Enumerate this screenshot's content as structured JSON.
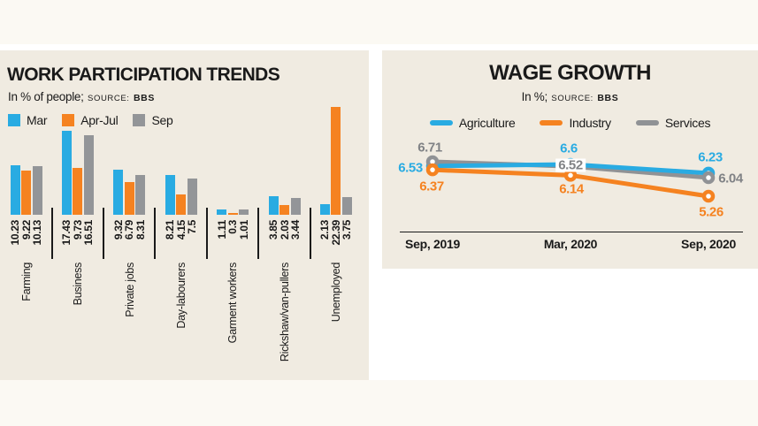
{
  "colors": {
    "blue": "#29abe2",
    "orange": "#f58220",
    "gray": "#939598",
    "gray_dark": "#808285",
    "panel_bg": "#f0ebe1",
    "page_bg": "#fbf9f3"
  },
  "left_chart": {
    "title": "WORK PARTICIPATION TRENDS",
    "subtitle": "In % of people;",
    "source_label": "SOURCE:",
    "source_value": "BBS"
  },
  "right_chart": {
    "title": "WAGE GROWTH",
    "subtitle": "In %;",
    "source_label": "SOURCE:",
    "source_value": "BBS"
  },
  "chart_data": [
    {
      "type": "bar",
      "title": "WORK PARTICIPATION TRENDS",
      "unit": "In % of people",
      "source": "BBS",
      "legend_position": "top-left",
      "categories": [
        "Farming",
        "Business",
        "Private jobs",
        "Day-labourers",
        "Garment workers",
        "Rickshaw/van-pullers",
        "Unemployed"
      ],
      "series": [
        {
          "name": "Mar",
          "color": "#29abe2",
          "values": [
            10.23,
            17.43,
            9.32,
            8.21,
            1.11,
            3.85,
            2.13
          ]
        },
        {
          "name": "Apr-Jul",
          "color": "#f58220",
          "values": [
            9.22,
            9.73,
            6.79,
            4.15,
            0.3,
            2.03,
            22.39
          ]
        },
        {
          "name": "Sep",
          "color": "#939598",
          "values": [
            10.13,
            16.51,
            8.31,
            7.5,
            1.01,
            3.44,
            3.75
          ]
        }
      ],
      "ylim": [
        0,
        23
      ],
      "grid": false
    },
    {
      "type": "line",
      "title": "WAGE GROWTH",
      "unit": "In %",
      "source": "BBS",
      "legend_position": "top",
      "x": [
        "Sep, 2019",
        "Mar, 2020",
        "Sep, 2020"
      ],
      "series": [
        {
          "name": "Agriculture",
          "color": "#29abe2",
          "label_color": "#29abe2",
          "values": [
            6.53,
            6.6,
            6.23
          ]
        },
        {
          "name": "Industry",
          "color": "#f58220",
          "label_color": "#f58220",
          "values": [
            6.37,
            6.14,
            5.26
          ]
        },
        {
          "name": "Services",
          "color": "#909295",
          "label_color": "#808285",
          "values": [
            6.71,
            6.52,
            6.04
          ]
        }
      ],
      "ylim": [
        5,
        7
      ],
      "grid": false
    }
  ]
}
